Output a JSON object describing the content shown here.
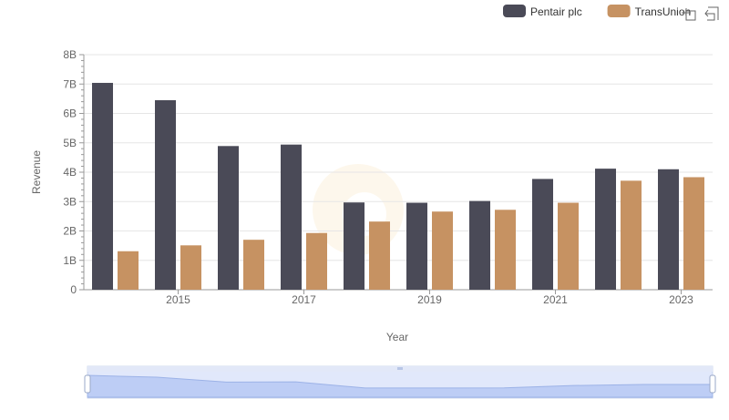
{
  "chart_data": {
    "type": "bar",
    "title": "",
    "xlabel": "Year",
    "ylabel": "Revenue",
    "ylim": [
      0,
      8000000000
    ],
    "y_ticks": [
      0,
      1000000000,
      2000000000,
      3000000000,
      4000000000,
      5000000000,
      6000000000,
      7000000000,
      8000000000
    ],
    "y_tick_labels": [
      "0",
      "1B",
      "2B",
      "3B",
      "4B",
      "5B",
      "6B",
      "7B",
      "8B"
    ],
    "categories": [
      2014,
      2015,
      2016,
      2017,
      2018,
      2019,
      2020,
      2021,
      2022,
      2023
    ],
    "x_tick_labels": [
      "2015",
      "2017",
      "2019",
      "2021",
      "2023"
    ],
    "x_tick_values": [
      2015,
      2017,
      2019,
      2021,
      2023
    ],
    "legend_position": "top-right",
    "series": [
      {
        "name": "Pentair plc",
        "color": "#4a4a57",
        "values": [
          7040000000,
          6450000000,
          4890000000,
          4940000000,
          2970000000,
          2960000000,
          3020000000,
          3770000000,
          4120000000,
          4100000000
        ]
      },
      {
        "name": "TransUnion",
        "color": "#c69262",
        "values": [
          1310000000,
          1510000000,
          1700000000,
          1930000000,
          2320000000,
          2660000000,
          2720000000,
          2960000000,
          3710000000,
          3830000000
        ]
      }
    ]
  },
  "toolbar": {
    "zoom_icon": "zoom-select-icon",
    "reset_icon": "zoom-reset-icon"
  },
  "zoom_slider": {
    "handle_icon": "slider-handle-icon"
  }
}
